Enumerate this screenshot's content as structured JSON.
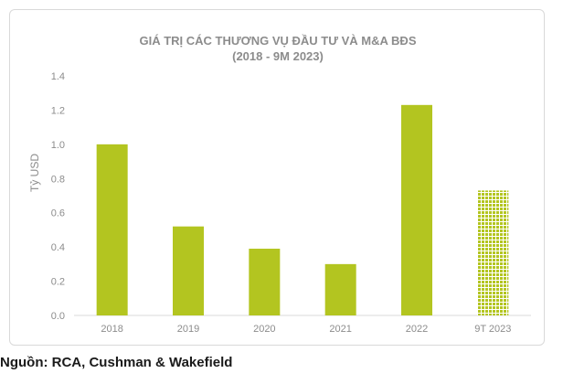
{
  "chart_data": {
    "type": "bar",
    "title": "GIÁ TRỊ CÁC THƯƠNG VỤ ĐẦU TƯ VÀ M&A BĐS",
    "subtitle": "(2018 - 9M 2023)",
    "ylabel": "Tỷ USD",
    "xlabel": "",
    "categories": [
      "2018",
      "2019",
      "2020",
      "2021",
      "2022",
      "9T 2023"
    ],
    "values": [
      1.0,
      0.52,
      0.39,
      0.3,
      1.23,
      0.73
    ],
    "ylim": [
      0,
      1.4
    ],
    "yticks": [
      "0.0",
      "0.2",
      "0.4",
      "0.6",
      "0.8",
      "1.0",
      "1.2",
      "1.4"
    ],
    "ytick_values": [
      0,
      0.2,
      0.4,
      0.6,
      0.8,
      1.0,
      1.2,
      1.4
    ],
    "grid": false,
    "bar_color": "#b3c520",
    "patterned_category": "9T 2023"
  },
  "source": "Nguồn: RCA, Cushman & Wakefield"
}
